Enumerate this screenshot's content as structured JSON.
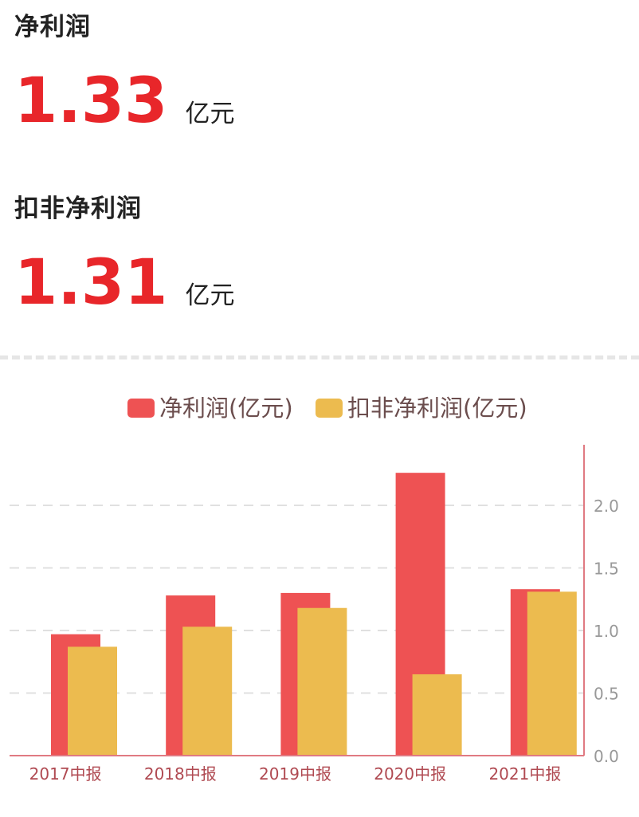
{
  "metrics": {
    "net_profit": {
      "title": "净利润",
      "value": "1.33",
      "unit": "亿元"
    },
    "deducted_net_profit": {
      "title": "扣非净利润",
      "value": "1.31",
      "unit": "亿元"
    }
  },
  "colors": {
    "series1": "#ee5253",
    "series2": "#ecbb4f",
    "axis": "#e07a82",
    "grid": "#e0e0e0",
    "tick_text": "#999999",
    "category_text": "#b04a52",
    "legend_text": "#6b4d4d",
    "title_text": "#222222",
    "value_text": "#e8262a"
  },
  "chart_data": {
    "type": "bar",
    "categories": [
      "2017中报",
      "2018中报",
      "2019中报",
      "2020中报",
      "2021中报"
    ],
    "series": [
      {
        "name": "净利润(亿元)",
        "values": [
          0.97,
          1.28,
          1.3,
          2.26,
          1.33
        ]
      },
      {
        "name": "扣非净利润(亿元)",
        "values": [
          0.87,
          1.03,
          1.18,
          0.65,
          1.31
        ]
      }
    ],
    "y_axis_position": "right",
    "y_ticks": [
      "0.0",
      "0.5",
      "1.0",
      "1.5",
      "2.0"
    ],
    "ylim": [
      0,
      2.5
    ],
    "grid": true,
    "legend_position": "top-center"
  }
}
